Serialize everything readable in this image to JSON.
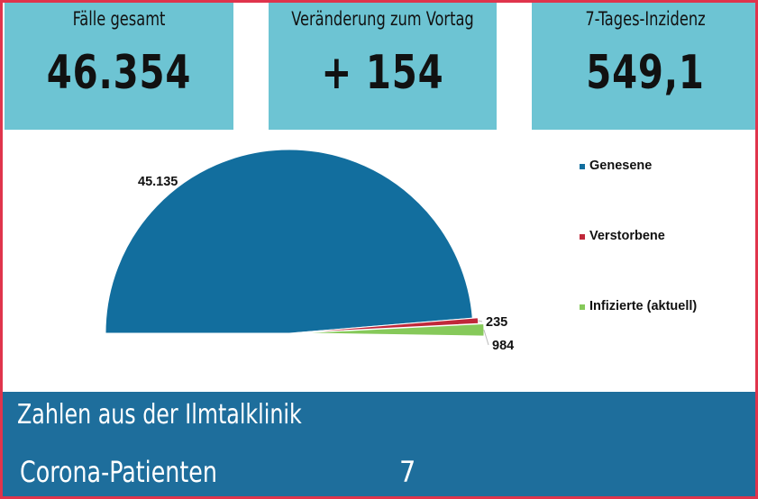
{
  "kpis": [
    {
      "title": "Fälle gesamt",
      "value": "46.354"
    },
    {
      "title": "Veränderung zum Vortag",
      "value": "+ 154"
    },
    {
      "title": "7-Tages-Inzidenz",
      "value": "549,1"
    }
  ],
  "colors": {
    "frame": "#e0344c",
    "kpi_bg": "#6dc4d3",
    "bottom_bg": "#1e6e9c"
  },
  "chart_data": {
    "type": "pie",
    "subtype": "half-pie",
    "title": "",
    "slices": [
      {
        "name": "Genesene",
        "value": 45135,
        "label": "45.135",
        "color": "#126e9e"
      },
      {
        "name": "Verstorbene",
        "value": 235,
        "label": "235",
        "color": "#c0283a"
      },
      {
        "name": "Infizierte (aktuell)",
        "value": 984,
        "label": "984",
        "color": "#86c95a"
      }
    ],
    "legend_position": "right"
  },
  "clinic": {
    "title": "Zahlen aus der Ilmtalklinik",
    "rows": [
      {
        "label": "Corona-Patienten",
        "value": "7"
      }
    ]
  }
}
